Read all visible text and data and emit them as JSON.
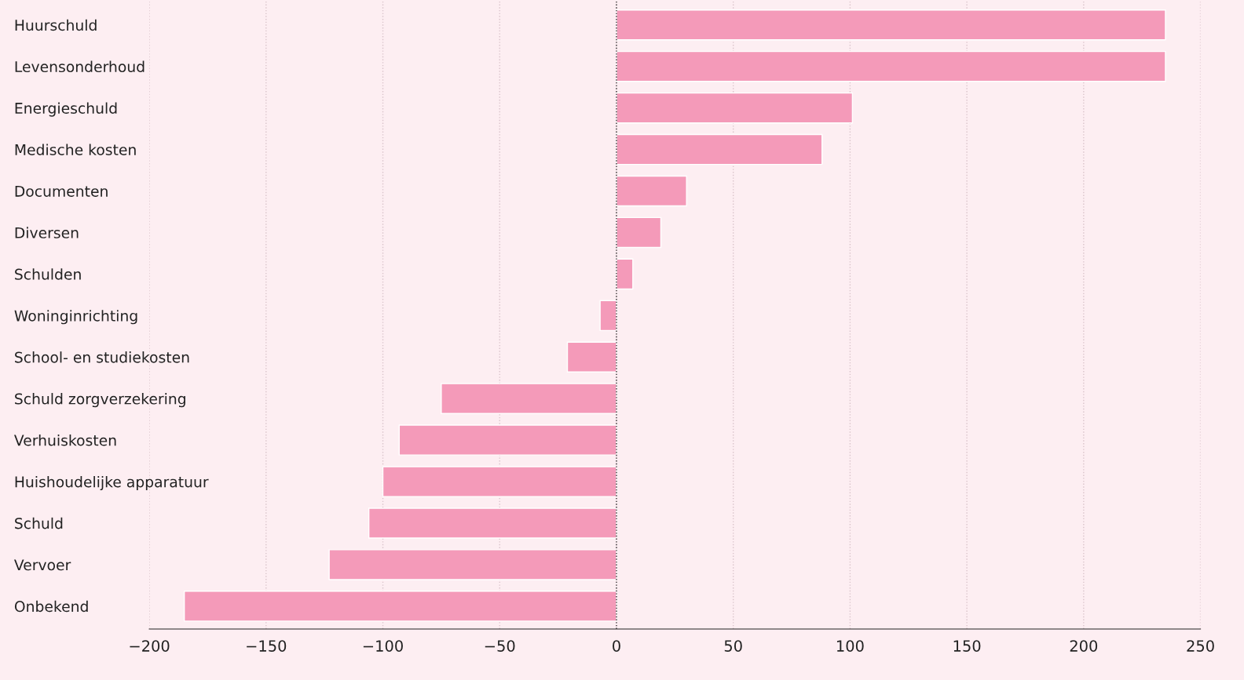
{
  "chart_data": {
    "type": "bar",
    "orientation": "horizontal",
    "categories": [
      "Huurschuld",
      "Levensonderhoud",
      "Energieschuld",
      "Medische kosten",
      "Documenten",
      "Diversen",
      "Schulden",
      "Woninginrichting",
      "School- en studiekosten",
      "Schuld zorgverzekering",
      "Verhuiskosten",
      "Huishoudelijke apparatuur",
      "Schuld",
      "Vervoer",
      "Onbekend"
    ],
    "values": [
      235,
      235,
      101,
      88,
      30,
      19,
      7,
      -7,
      -21,
      -75,
      -93,
      -100,
      -106,
      -123,
      -185
    ],
    "color": "#f49ab9",
    "grid": "x",
    "xlim": [
      -200,
      250
    ],
    "xticks": [
      {
        "value": -200,
        "label": "−200"
      },
      {
        "value": -150,
        "label": "−150"
      },
      {
        "value": -100,
        "label": "−100"
      },
      {
        "value": -50,
        "label": "−50"
      },
      0,
      50,
      100,
      150,
      200,
      250
    ],
    "ref_lines": [
      {
        "axis": "x",
        "value": 0,
        "color": "#333333",
        "line_style": "dotted"
      }
    ]
  }
}
